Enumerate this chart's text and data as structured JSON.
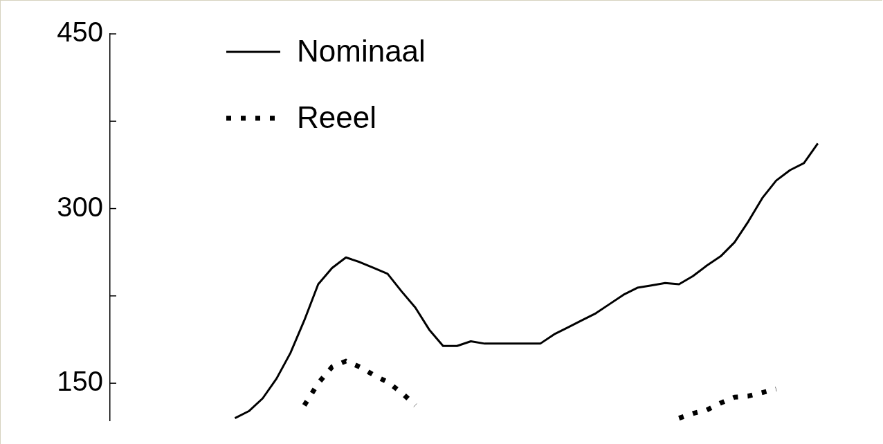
{
  "chart_data": {
    "type": "line",
    "categories": [
      null,
      null,
      null,
      null,
      null,
      null,
      null,
      null,
      null,
      null,
      null,
      null,
      null,
      null,
      null,
      null,
      null,
      null,
      null,
      null,
      null,
      null,
      null,
      null,
      null,
      null,
      null,
      null,
      null,
      null,
      null,
      null,
      null,
      null,
      null,
      null,
      null,
      null,
      null,
      null,
      null,
      null,
      null,
      null,
      null,
      null,
      null,
      null,
      null,
      null,
      null,
      null,
      null,
      null,
      null,
      null
    ],
    "series": [
      {
        "name": "Nominaal",
        "color": "#000000",
        "line_style": "solid",
        "values": [
          null,
          null,
          null,
          null,
          null,
          null,
          null,
          null,
          null,
          120,
          126,
          137,
          154,
          176,
          204,
          235,
          249,
          258,
          254,
          249,
          244,
          229,
          215,
          196,
          182,
          182,
          186,
          184,
          184,
          184,
          184,
          184,
          192,
          198,
          204,
          210,
          218,
          226,
          232,
          234,
          236,
          235,
          242,
          251,
          259,
          271,
          289,
          309,
          324,
          333,
          339,
          356,
          null,
          null,
          null,
          null
        ]
      },
      {
        "name": "Reeel",
        "color": "#000000",
        "line_style": "dotted",
        "values": [
          null,
          null,
          null,
          null,
          null,
          null,
          null,
          null,
          null,
          null,
          null,
          null,
          null,
          null,
          131,
          150,
          164,
          169,
          164,
          157,
          151,
          142,
          131,
          null,
          null,
          null,
          null,
          null,
          null,
          null,
          null,
          null,
          null,
          null,
          null,
          null,
          null,
          null,
          null,
          null,
          null,
          120,
          124,
          127,
          133,
          138,
          139,
          142,
          145,
          null,
          null,
          null,
          null,
          null,
          null,
          null
        ]
      }
    ],
    "ylim": [
      118,
      450
    ],
    "yticks": [
      {
        "value": 150,
        "label": "150"
      },
      {
        "value": 225,
        "label": null
      },
      {
        "value": 300,
        "label": "300"
      },
      {
        "value": 375,
        "label": null
      },
      {
        "value": 450,
        "label": "450"
      }
    ],
    "tick_labels": "y",
    "legend": "top left"
  }
}
